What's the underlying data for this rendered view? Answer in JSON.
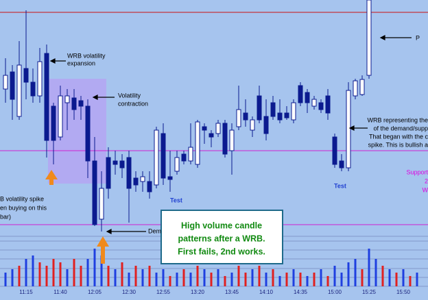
{
  "chart_data": {
    "type": "candlestick",
    "categories": [
      null,
      null,
      null,
      "11:15",
      null,
      null,
      null,
      null,
      "11:40",
      null,
      null,
      null,
      null,
      "12:05",
      null,
      null,
      null,
      null,
      "12:30",
      null,
      null,
      null,
      null,
      "12:55",
      null,
      null,
      null,
      null,
      "13:20",
      null,
      null,
      null,
      null,
      "13:45",
      null,
      null,
      null,
      null,
      "14:10",
      null,
      null,
      null,
      null,
      "14:35",
      null,
      null,
      null,
      null,
      "15:00",
      null,
      null,
      null,
      null,
      "15:25",
      null,
      null,
      null,
      null,
      "15:50",
      null,
      null
    ],
    "open": [
      210,
      235,
      170,
      240,
      220,
      200,
      262,
      185,
      140,
      190,
      197,
      193,
      185,
      105,
      20,
      110,
      105,
      105,
      110,
      80,
      75,
      75,
      70,
      145,
      82,
      90,
      115,
      105,
      100,
      155,
      145,
      145,
      160,
      120,
      155,
      175,
      150,
      200,
      170,
      190,
      175,
      175,
      165,
      215,
      205,
      185,
      190,
      200,
      140,
      105,
      95,
      200,
      202,
      230,
      null,
      null,
      null,
      null,
      null,
      null,
      null
    ],
    "high": [
      255,
      245,
      280,
      325,
      240,
      270,
      275,
      190,
      215,
      210,
      210,
      200,
      195,
      140,
      90,
      125,
      120,
      115,
      120,
      90,
      90,
      90,
      155,
      160,
      120,
      120,
      120,
      160,
      165,
      160,
      150,
      165,
      165,
      160,
      215,
      195,
      170,
      215,
      195,
      200,
      195,
      185,
      195,
      220,
      210,
      200,
      195,
      210,
      145,
      115,
      220,
      225,
      230,
      340,
      null,
      null,
      null,
      null,
      null,
      null,
      null
    ],
    "low": [
      190,
      165,
      165,
      195,
      190,
      190,
      110,
      100,
      135,
      150,
      165,
      165,
      80,
      10,
      2,
      50,
      85,
      80,
      15,
      60,
      60,
      50,
      65,
      70,
      60,
      85,
      100,
      100,
      95,
      130,
      125,
      140,
      110,
      85,
      150,
      155,
      140,
      160,
      135,
      165,
      160,
      165,
      160,
      185,
      175,
      180,
      175,
      165,
      95,
      90,
      90,
      195,
      200,
      225,
      null,
      null,
      null,
      null,
      null,
      null,
      null
    ],
    "close": [
      230,
      195,
      245,
      220,
      200,
      250,
      135,
      135,
      200,
      200,
      180,
      185,
      105,
      12,
      65,
      65,
      100,
      95,
      65,
      70,
      82,
      60,
      150,
      80,
      78,
      110,
      105,
      125,
      162,
      150,
      140,
      160,
      115,
      150,
      180,
      165,
      165,
      165,
      145,
      170,
      165,
      168,
      190,
      190,
      190,
      195,
      180,
      175,
      100,
      95,
      208,
      222,
      224,
      340,
      null,
      null,
      null,
      null,
      null,
      null,
      null
    ],
    "up_color": "#ffffff",
    "down_color": "#0b1a8f",
    "ylim": [
      0,
      340
    ],
    "volume": [
      20,
      25,
      30,
      40,
      45,
      35,
      30,
      40,
      35,
      25,
      40,
      30,
      40,
      55,
      45,
      30,
      25,
      35,
      20,
      30,
      25,
      30,
      20,
      25,
      15,
      20,
      25,
      20,
      30,
      25,
      20,
      25,
      15,
      20,
      30,
      20,
      25,
      30,
      20,
      25,
      15,
      20,
      25,
      20,
      15,
      20,
      25,
      15,
      30,
      20,
      35,
      40,
      25,
      55,
      40,
      30,
      25,
      20,
      25,
      15,
      20
    ],
    "volume_colors": [
      "#1f3fe0",
      "#1f3fe0",
      "#e02020",
      "#1f3fe0",
      "#1f3fe0",
      "#e02020",
      "#e02020",
      "#e02020",
      "#e02020",
      "#1f3fe0",
      "#e02020",
      "#e02020",
      "#1f3fe0",
      "#1f3fe0",
      "#1f3fe0",
      "#e02020",
      "#1f3fe0",
      "#e02020",
      "#1f3fe0",
      "#e02020",
      "#1f3fe0",
      "#e02020",
      "#1f3fe0",
      "#1f3fe0",
      "#e02020",
      "#1f3fe0",
      "#e02020",
      "#1f3fe0",
      "#e02020",
      "#1f3fe0",
      "#e02020",
      "#1f3fe0",
      "#e02020",
      "#1f3fe0",
      "#e02020",
      "#e02020",
      "#1f3fe0",
      "#e02020",
      "#1f3fe0",
      "#e02020",
      "#1f3fe0",
      "#e02020",
      "#1f3fe0",
      "#e02020",
      "#1f3fe0",
      "#e02020",
      "#1f3fe0",
      "#e02020",
      "#1f3fe0",
      "#1f3fe0",
      "#1f3fe0",
      "#1f3fe0",
      "#e02020",
      "#1f3fe0",
      "#1f3fe0",
      "#e02020",
      "#1f3fe0",
      "#e02020",
      "#1f3fe0",
      "#e02020",
      "#1f3fe0"
    ],
    "vlim": [
      0,
      60
    ],
    "levels": [
      {
        "value": 322,
        "color": "#cc1010"
      },
      {
        "value": 120,
        "color": "#d020d0"
      },
      {
        "value": 12,
        "color": "#d020d0"
      }
    ],
    "annotations": [
      {
        "lines": [
          "WRB volatility",
          "expansion"
        ]
      },
      {
        "lines": [
          "Volatility",
          "contraction"
        ]
      },
      {
        "lines": [
          "B volatility spike",
          "en buying on this",
          "bar)"
        ]
      },
      {
        "lines": [
          "Dem"
        ]
      },
      {
        "lines": [
          "Test"
        ]
      },
      {
        "lines": [
          "Test"
        ]
      },
      {
        "lines": [
          "High volume candle",
          "patterns after a WRB.",
          "First fails, 2nd works."
        ]
      },
      {
        "lines": [
          "P"
        ]
      },
      {
        "lines": [
          "WRB representing the",
          "of the demand/supp",
          "That began with the c",
          "spike. This is bullish a"
        ]
      },
      {
        "lines": [
          "Support",
          "2",
          "W"
        ]
      }
    ]
  }
}
